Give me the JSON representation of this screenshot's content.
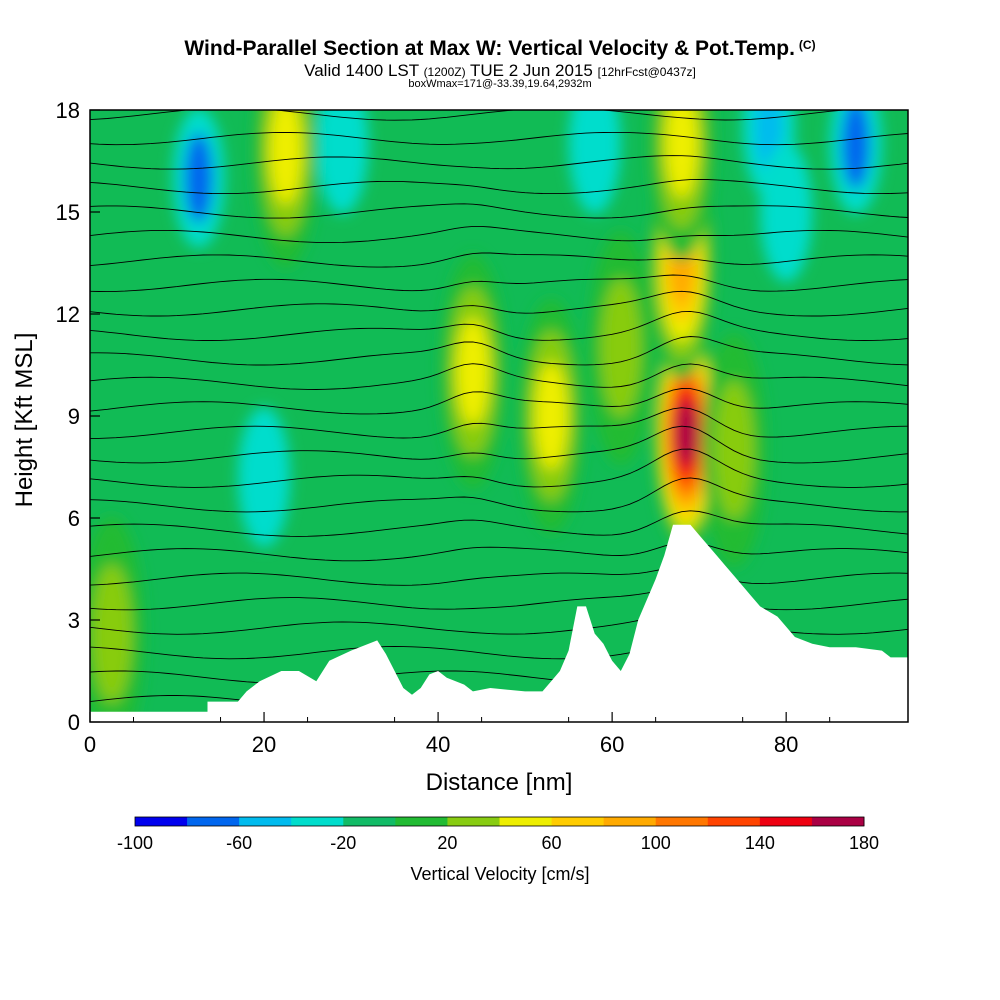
{
  "chart_data": {
    "type": "heatmap",
    "title": "Wind-Parallel Section at Max W: Vertical Velocity & Pot.Temp.",
    "title_mark": "(C)",
    "subtitle_main": "Valid 1400 LST",
    "subtitle_utc": "(1200Z)",
    "subtitle_date": "TUE 2 Jun 2015",
    "subtitle_fcst": "[12hrFcst@0437z]",
    "subtitle2": "boxWmax=171@-33.39,19.64,2932m",
    "xlabel": "Distance [nm]",
    "ylabel": "Height [Kft MSL]",
    "xlim": [
      0,
      94
    ],
    "ylim": [
      0,
      18
    ],
    "x_ticks": [
      0,
      20,
      40,
      60,
      80
    ],
    "y_ticks": [
      0,
      3,
      6,
      9,
      12,
      15,
      18
    ],
    "colorbar": {
      "title": "Vertical Velocity [cm/s]",
      "min": -100,
      "max": 180,
      "step": 20,
      "tick_labels": [
        -100,
        -60,
        -20,
        20,
        60,
        100,
        140,
        180
      ],
      "colors": [
        "#0000ee",
        "#0066ee",
        "#00bbee",
        "#00ddcc",
        "#11bb66",
        "#22bb33",
        "#88cc11",
        "#eeee00",
        "#ffcc00",
        "#ffaa00",
        "#ff7700",
        "#ff4400",
        "#ee0011",
        "#aa0044"
      ]
    },
    "max_w": {
      "value_cms": 171,
      "lat": -33.39,
      "lon": 19.64,
      "height_m": 2932
    },
    "updraft_cells": [
      {
        "x_nm": 68.5,
        "y_kft": 8.5,
        "w_cms": 171
      },
      {
        "x_nm": 68.0,
        "y_kft": 13.5,
        "w_cms": 100
      },
      {
        "x_nm": 68.0,
        "y_kft": 17.0,
        "w_cms": 60
      },
      {
        "x_nm": 44.0,
        "y_kft": 10.3,
        "w_cms": 60
      },
      {
        "x_nm": 53.0,
        "y_kft": 9.0,
        "w_cms": 50
      },
      {
        "x_nm": 22.5,
        "y_kft": 16.8,
        "w_cms": 50
      },
      {
        "x_nm": 2.5,
        "y_kft": 2.6,
        "w_cms": 45
      },
      {
        "x_nm": 74.0,
        "y_kft": 8.0,
        "w_cms": 45
      },
      {
        "x_nm": 61.0,
        "y_kft": 11.0,
        "w_cms": 40
      }
    ],
    "downdraft_cells": [
      {
        "x_nm": 12.5,
        "y_kft": 16.0,
        "w_cms": -70
      },
      {
        "x_nm": 20.0,
        "y_kft": 7.2,
        "w_cms": -40
      },
      {
        "x_nm": 29.0,
        "y_kft": 17.0,
        "w_cms": -40
      },
      {
        "x_nm": 58.0,
        "y_kft": 17.0,
        "w_cms": -40
      },
      {
        "x_nm": 78.0,
        "y_kft": 17.5,
        "w_cms": -60
      },
      {
        "x_nm": 88.0,
        "y_kft": 17.0,
        "w_cms": -70
      },
      {
        "x_nm": 80.0,
        "y_kft": 15.0,
        "w_cms": -25
      }
    ],
    "terrain_kft": [
      [
        0,
        0.3
      ],
      [
        5,
        0.3
      ],
      [
        9,
        0.3
      ],
      [
        13.5,
        0.3
      ],
      [
        13.5,
        0.6
      ],
      [
        17,
        0.6
      ],
      [
        18,
        0.9
      ],
      [
        19.5,
        1.2
      ],
      [
        22,
        1.5
      ],
      [
        24,
        1.5
      ],
      [
        26,
        1.2
      ],
      [
        27.5,
        1.8
      ],
      [
        30,
        2.1
      ],
      [
        33,
        2.4
      ],
      [
        34,
        2.0
      ],
      [
        35,
        1.5
      ],
      [
        36,
        1.0
      ],
      [
        37,
        0.8
      ],
      [
        38,
        1.0
      ],
      [
        39,
        1.4
      ],
      [
        40,
        1.5
      ],
      [
        41,
        1.3
      ],
      [
        43,
        1.1
      ],
      [
        44,
        0.9
      ],
      [
        46,
        1.0
      ],
      [
        50,
        0.9
      ],
      [
        52,
        0.9
      ],
      [
        53,
        1.2
      ],
      [
        54,
        1.5
      ],
      [
        55,
        2.1
      ],
      [
        56,
        3.4
      ],
      [
        57,
        3.4
      ],
      [
        58,
        2.6
      ],
      [
        59,
        2.3
      ],
      [
        60,
        1.8
      ],
      [
        61,
        1.5
      ],
      [
        62,
        2.0
      ],
      [
        63,
        3.0
      ],
      [
        65,
        4.2
      ],
      [
        66,
        4.9
      ],
      [
        67,
        5.8
      ],
      [
        68,
        5.8
      ],
      [
        69,
        5.8
      ],
      [
        70,
        5.5
      ],
      [
        71,
        5.2
      ],
      [
        72,
        4.9
      ],
      [
        73,
        4.6
      ],
      [
        74,
        4.3
      ],
      [
        75,
        4.0
      ],
      [
        76,
        3.7
      ],
      [
        77,
        3.4
      ],
      [
        79,
        3.1
      ],
      [
        80,
        2.8
      ],
      [
        81,
        2.5
      ],
      [
        83,
        2.3
      ],
      [
        85,
        2.2
      ],
      [
        88,
        2.2
      ],
      [
        91,
        2.1
      ],
      [
        92,
        1.9
      ],
      [
        94,
        1.9
      ]
    ]
  }
}
